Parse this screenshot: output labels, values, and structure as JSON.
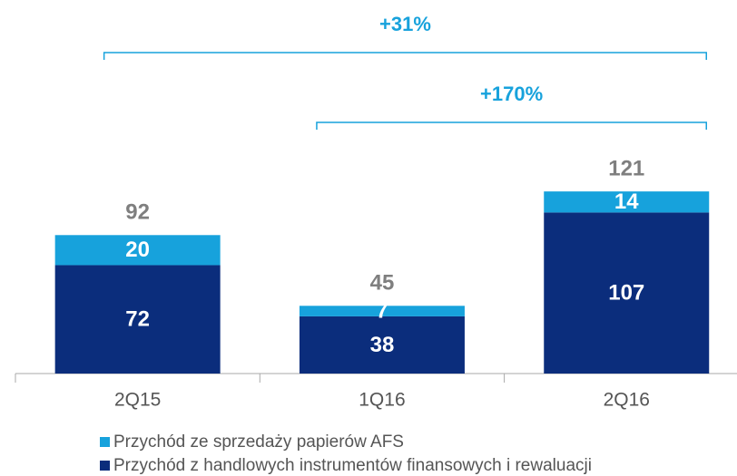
{
  "chart_data": {
    "type": "stacked_bar",
    "categories": [
      "2Q15",
      "1Q16",
      "2Q16"
    ],
    "series": [
      {
        "name": "Przychód z handlowych instrumentów finansowych i rewaluacji",
        "color": "#0b2d7c",
        "values": [
          72,
          38,
          107
        ]
      },
      {
        "name": "Przychód ze sprzedaży papierów AFS",
        "color": "#17a2dc",
        "values": [
          20,
          7,
          14
        ]
      }
    ],
    "totals": [
      92,
      45,
      121
    ],
    "ylim": [
      0,
      150
    ],
    "annotations": [
      {
        "text": "+31%",
        "from": "2Q15",
        "to": "2Q16"
      },
      {
        "text": "+170%",
        "from": "1Q16",
        "to": "2Q16"
      }
    ],
    "legend": "bottom-left"
  }
}
